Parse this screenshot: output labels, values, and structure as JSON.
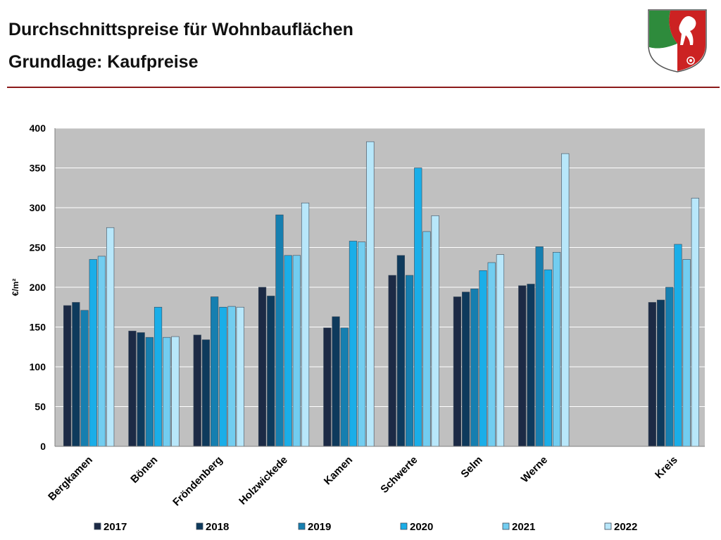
{
  "header": {
    "title_line1": "Durchschnittspreise für Wohnbauflächen",
    "title_line2": "Grundlage: Kaufpreise",
    "accent_color": "#8b1a1a"
  },
  "logo": {
    "name": "nrw-coat-of-arms-icon"
  },
  "chart_data": {
    "type": "bar",
    "title": "Durchschnittspreise für Wohnbauflächen",
    "subtitle": "Grundlage: Kaufpreise",
    "ylabel": "€/m²",
    "xlabel": "",
    "ylim": [
      0,
      400
    ],
    "yticks": [
      0,
      50,
      100,
      150,
      200,
      250,
      300,
      350,
      400
    ],
    "grid": true,
    "legend_position": "bottom",
    "plot_background": "#c0c0c0",
    "categories": [
      "Bergkamen",
      "Bönen",
      "Fröndenberg",
      "Holzwickede",
      "Kamen",
      "Schwerte",
      "Selm",
      "Werne",
      "",
      "Kreis"
    ],
    "series": [
      {
        "name": "2017",
        "color": "#1c2a45",
        "values": [
          177,
          145,
          140,
          200,
          149,
          215,
          188,
          202,
          null,
          181
        ]
      },
      {
        "name": "2018",
        "color": "#0e3a5c",
        "values": [
          181,
          143,
          134,
          189,
          163,
          240,
          194,
          204,
          null,
          184
        ]
      },
      {
        "name": "2019",
        "color": "#167fb0",
        "values": [
          171,
          137,
          188,
          291,
          149,
          215,
          198,
          251,
          null,
          200
        ]
      },
      {
        "name": "2020",
        "color": "#1aaee8",
        "values": [
          235,
          175,
          175,
          240,
          258,
          350,
          221,
          222,
          null,
          254
        ]
      },
      {
        "name": "2021",
        "color": "#72cdf0",
        "values": [
          239,
          137,
          176,
          240,
          257,
          270,
          231,
          244,
          null,
          235
        ]
      },
      {
        "name": "2022",
        "color": "#b8e7fa",
        "values": [
          275,
          138,
          175,
          306,
          383,
          290,
          241,
          368,
          null,
          312
        ]
      }
    ]
  }
}
